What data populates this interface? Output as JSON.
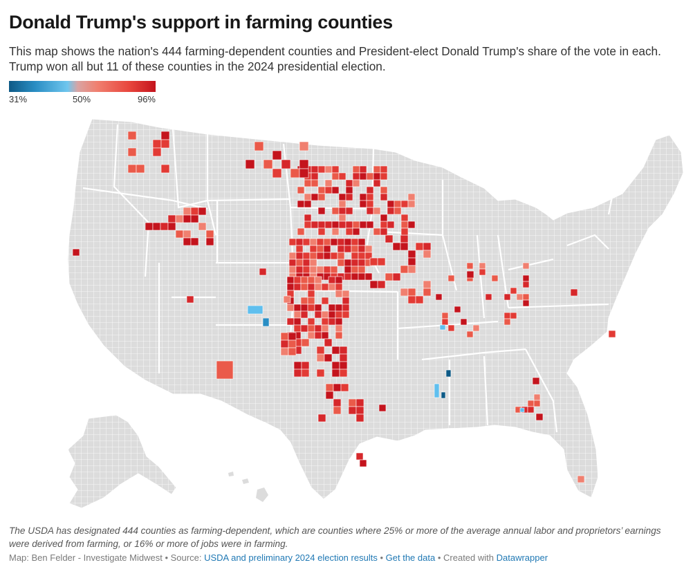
{
  "header": {
    "title": "Donald Trump's support in farming counties",
    "subtitle": "This map shows the nation's 444 farming-dependent counties and President-elect Donald Trump's share of the vote in each. Trump won all but 11 of these counties in the 2024 presidential election."
  },
  "legend": {
    "min_label": "31%",
    "mid_label": "50%",
    "max_label": "96%",
    "scale": {
      "min": 31,
      "mid": 50,
      "max": 96
    },
    "colors": [
      "#0e5a86",
      "#6fc6ee",
      "#d9a3a3",
      "#f08070",
      "#c4141d"
    ]
  },
  "map": {
    "base_color": "#dddddd",
    "border_color": "#ffffff"
  },
  "notes": "The USDA has designated 444 counties as farming-dependent, which are counties where 25% or more of the average annual labor and proprietors’ earnings were derived from farming, or 16% or more of jobs were in farming.",
  "footer": {
    "map_credit": "Map: Ben Felder - Investigate Midwest",
    "source_label": "Source:",
    "source_link": "USDA and preliminary 2024 election results",
    "data_link": "Get the data",
    "created_label": "Created with",
    "tool_link": "Datawrapper",
    "separator": "•"
  }
}
